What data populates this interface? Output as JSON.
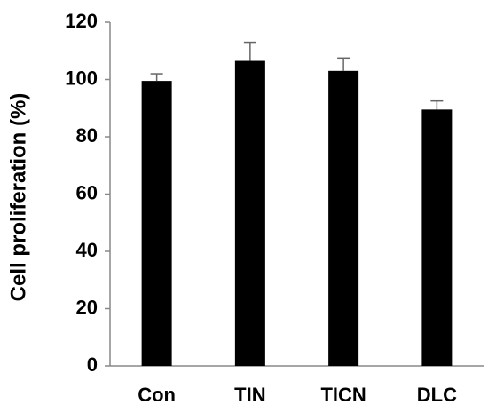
{
  "chart_data": {
    "type": "bar",
    "title": "",
    "xlabel": "",
    "ylabel": "Cell proliferation (%)",
    "categories": [
      "Con",
      "TIN",
      "TICN",
      "DLC"
    ],
    "values": [
      99.5,
      106.5,
      103,
      89.5
    ],
    "errors": [
      2.5,
      6.5,
      4.5,
      3
    ],
    "ylim": [
      0,
      120
    ],
    "yticks": [
      "0",
      "20",
      "40",
      "60",
      "80",
      "100",
      "120"
    ],
    "grid": false,
    "bar_color": "#000000"
  }
}
